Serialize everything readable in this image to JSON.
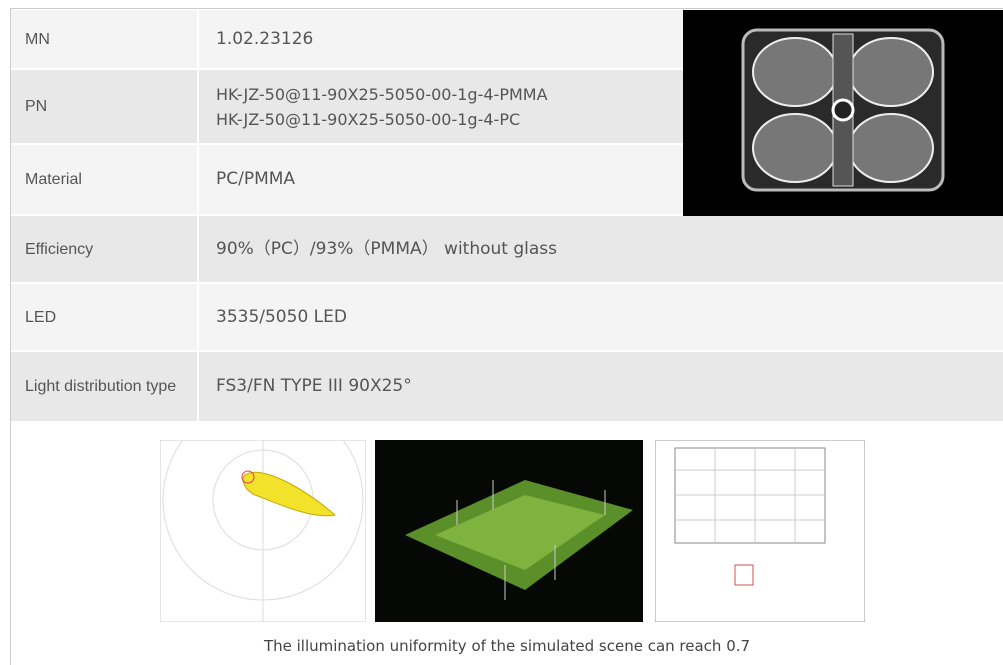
{
  "rows": [
    {
      "label": "MN",
      "value": [
        "1.02.23126"
      ]
    },
    {
      "label": "PN",
      "value": [
        "HK-JZ-50@11-90X25-5050-00-1g-4-PMMA",
        "HK-JZ-50@11-90X25-5050-00-1g-4-PC"
      ]
    },
    {
      "label": "Material",
      "value": [
        "PC/PMMA"
      ]
    },
    {
      "label": "Efficiency",
      "value": [
        "90%（PC）/93%（PMMA） without glass"
      ]
    },
    {
      "label": "LED",
      "value": [
        "3535/5050 LED"
      ]
    },
    {
      "label": "Light distribution type",
      "value": [
        "FS3/FN TYPE III 90X25°"
      ]
    }
  ],
  "caption": "The illumination uniformity of the simulated scene can reach 0.7"
}
